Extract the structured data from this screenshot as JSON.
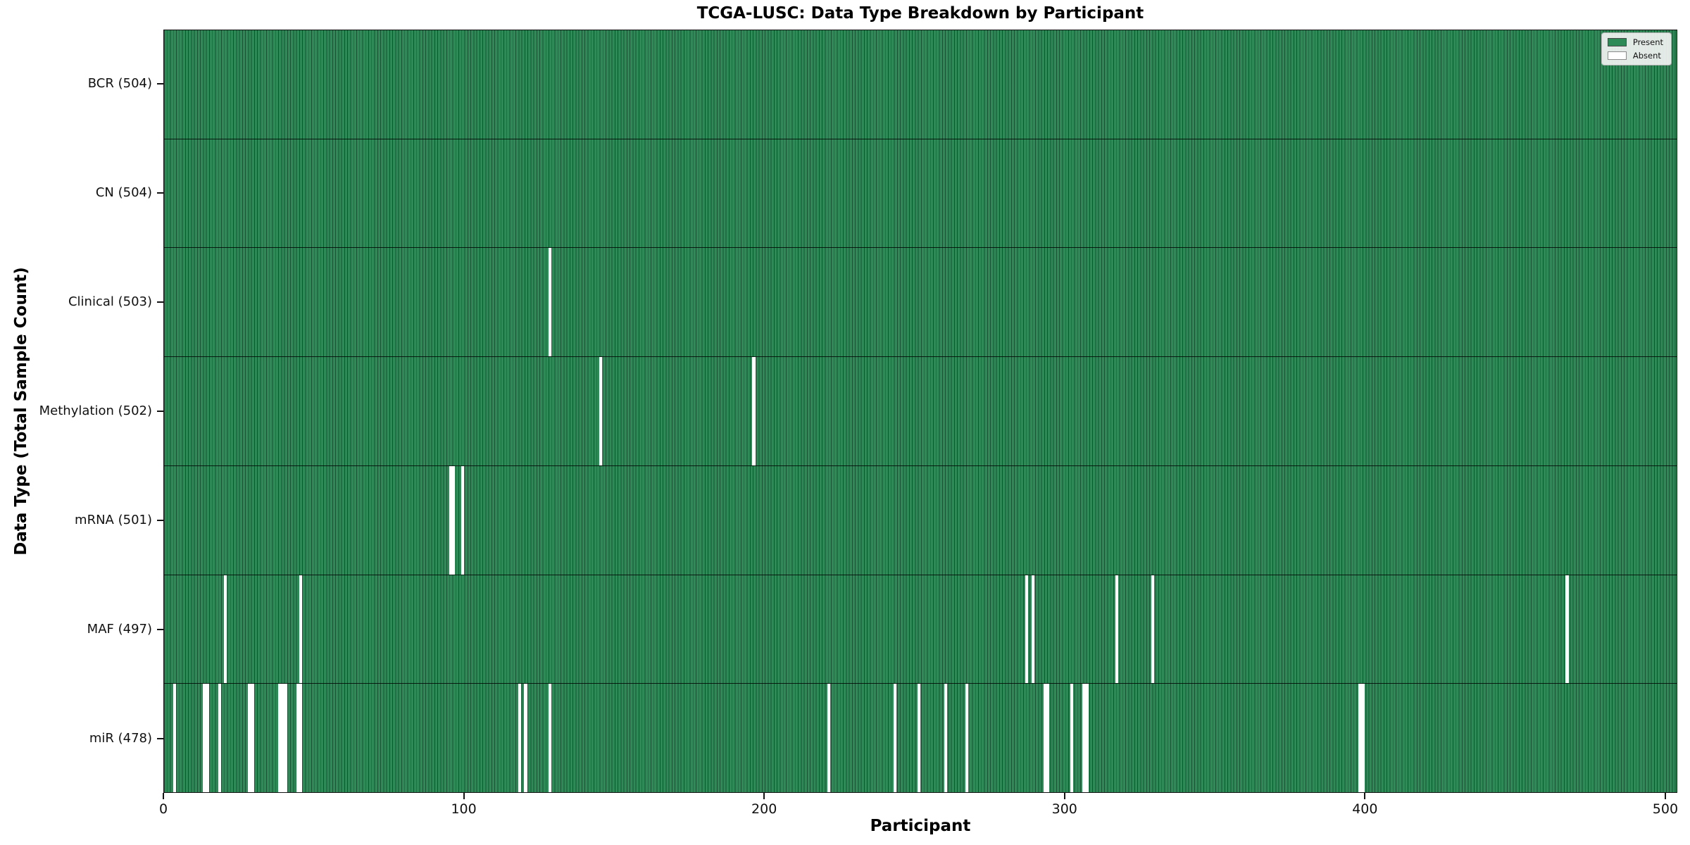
{
  "chart_data": {
    "type": "heatmap",
    "title": "TCGA-LUSC: Data Type Breakdown by Participant",
    "xlabel": "Participant",
    "ylabel": "Data Type (Total Sample Count)",
    "n_participants": 504,
    "x_range": [
      0,
      504
    ],
    "x_ticks": [
      0,
      100,
      200,
      300,
      400,
      500
    ],
    "grid": false,
    "legend_position": "upper right",
    "legend": [
      {
        "label": "Present",
        "color": "#2E8B57"
      },
      {
        "label": "Absent",
        "color": "#FFFFFF"
      }
    ],
    "colors": {
      "present": "#2E8B57",
      "absent": "#FFFFFF",
      "cell_edge": "#0A2214",
      "background": "#FFFFFF"
    },
    "rows": [
      {
        "name": "bcr",
        "label": "BCR (504)",
        "present_count": 504,
        "absent_runs": []
      },
      {
        "name": "cn",
        "label": "CN (504)",
        "present_count": 504,
        "absent_runs": []
      },
      {
        "name": "clinical",
        "label": "Clinical (503)",
        "present_count": 503,
        "absent_runs": [
          [
            128,
            1
          ]
        ]
      },
      {
        "name": "methylation",
        "label": "Methylation (502)",
        "present_count": 502,
        "absent_runs": [
          [
            145,
            1
          ],
          [
            196,
            1
          ]
        ]
      },
      {
        "name": "mrna",
        "label": "mRNA (501)",
        "present_count": 501,
        "absent_runs": [
          [
            95,
            2
          ],
          [
            99,
            1
          ]
        ]
      },
      {
        "name": "maf",
        "label": "MAF (497)",
        "present_count": 497,
        "absent_runs": [
          [
            20,
            1
          ],
          [
            45,
            1
          ],
          [
            287,
            1
          ],
          [
            289,
            1
          ],
          [
            317,
            1
          ],
          [
            329,
            1
          ],
          [
            467,
            1
          ]
        ]
      },
      {
        "name": "mir",
        "label": "miR (478)",
        "present_count": 478,
        "absent_runs": [
          [
            3,
            1
          ],
          [
            13,
            2
          ],
          [
            18,
            1
          ],
          [
            28,
            2
          ],
          [
            38,
            3
          ],
          [
            44,
            2
          ],
          [
            118,
            1
          ],
          [
            120,
            1
          ],
          [
            128,
            1
          ],
          [
            221,
            1
          ],
          [
            243,
            1
          ],
          [
            251,
            1
          ],
          [
            260,
            1
          ],
          [
            267,
            1
          ],
          [
            293,
            2
          ],
          [
            302,
            1
          ],
          [
            306,
            2
          ],
          [
            398,
            2
          ]
        ]
      }
    ]
  }
}
